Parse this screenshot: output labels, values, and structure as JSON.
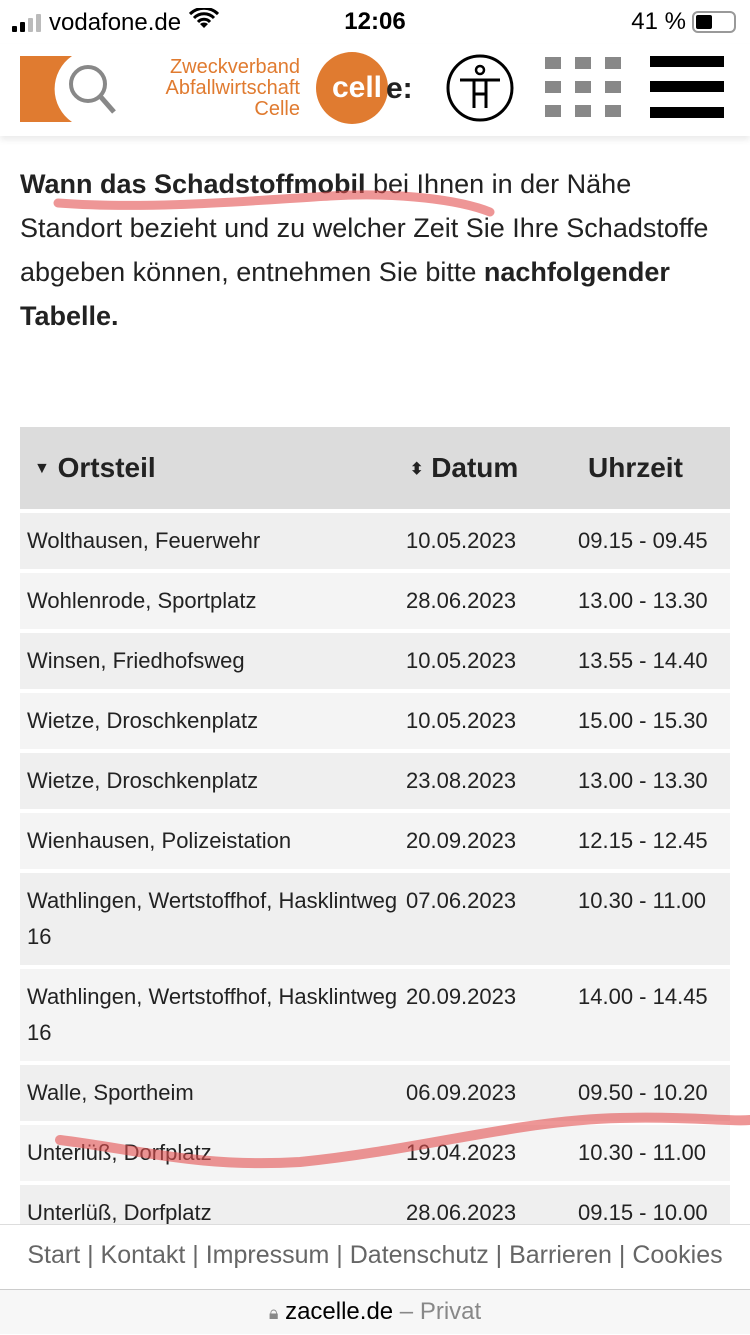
{
  "status_bar": {
    "carrier": "vodafone.de",
    "time": "12:06",
    "battery": "41 %"
  },
  "header": {
    "logo_lines": [
      "Zweckverband",
      "Abfallwirtschaft",
      "Celle"
    ],
    "brand": "cell",
    "brand_suffix": "e:",
    "accent": "#e07b30"
  },
  "intro": {
    "bold1": "Wann das Schadstoffmobil",
    "text1": " bei Ihnen in der Nähe Standort bezieht und zu welcher Zeit Sie Ihre Schadstoffe abgeben können, entnehmen Sie bitte ",
    "bold2": "nachfolgender Tabelle."
  },
  "table": {
    "headers": [
      "Ortsteil",
      "Datum",
      "Uhrzeit"
    ],
    "rows": [
      [
        "Wolthausen, Feuerwehr",
        "10.05.2023",
        "09.15 - 09.45"
      ],
      [
        "Wohlenrode, Sportplatz",
        "28.06.2023",
        "13.00 - 13.30"
      ],
      [
        "Winsen, Friedhofsweg",
        "10.05.2023",
        "13.55 - 14.40"
      ],
      [
        "Wietze, Droschkenplatz",
        "10.05.2023",
        "15.00 - 15.30"
      ],
      [
        "Wietze, Droschkenplatz",
        "23.08.2023",
        "13.00 - 13.30"
      ],
      [
        "Wienhausen, Polizeistation",
        "20.09.2023",
        "12.15 - 12.45"
      ],
      [
        "Wathlingen, Wertstoffhof, Hasklintweg 16",
        "07.06.2023",
        "10.30 - 11.00"
      ],
      [
        "Wathlingen, Wertstoffhof, Hasklintweg 16",
        "20.09.2023",
        "14.00 - 14.45"
      ],
      [
        "Walle, Sportheim",
        "06.09.2023",
        "09.50 - 10.20"
      ],
      [
        "Unterlüß, Dorfplatz",
        "19.04.2023",
        "10.30 - 11.00"
      ],
      [
        "Unterlüß, Dorfplatz",
        "28.06.2023",
        "09.15 - 10.00"
      ]
    ]
  },
  "footer": {
    "links": [
      "Start",
      "Kontakt",
      "Impressum",
      "Datenschutz",
      "Barrieren",
      "Cookies"
    ]
  },
  "url_bar": {
    "domain": "zacelle.de",
    "suffix": " – Privat"
  }
}
